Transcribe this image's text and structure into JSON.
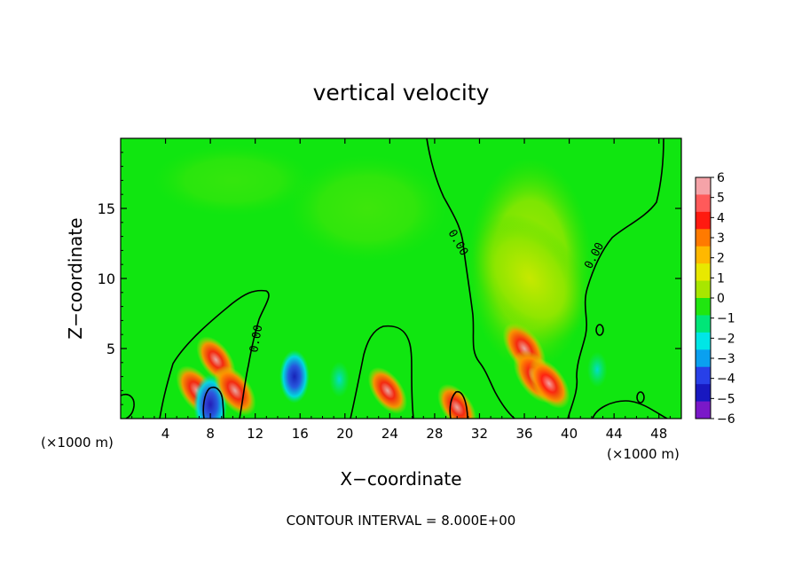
{
  "chart_data": {
    "type": "heatmap",
    "title": "vertical velocity",
    "xlabel": "X−coordinate",
    "ylabel": "Z−coordinate",
    "x_unit_left": "(×1000 m)",
    "x_unit_right": "(×1000 m)",
    "footer": "CONTOUR INTERVAL = 8.000E+00",
    "xlim": [
      0,
      50
    ],
    "ylim": [
      0,
      20
    ],
    "x_ticks": [
      4,
      8,
      12,
      16,
      20,
      24,
      28,
      32,
      36,
      40,
      44,
      48
    ],
    "y_ticks": [
      5,
      10,
      15
    ],
    "colorbar_levels": [
      6,
      5,
      4,
      3,
      2,
      1,
      0,
      -1,
      -2,
      -3,
      -4,
      -5,
      -6
    ],
    "colorbar_labels": [
      "6",
      "5",
      "4",
      "3",
      "2",
      "1",
      "0",
      "−1",
      "−2",
      "−3",
      "−4",
      "−5",
      "−6"
    ],
    "colorbar_colors": [
      "#f5a3a8",
      "#ff5a5a",
      "#ff1a10",
      "#ff7a00",
      "#ffb800",
      "#e8e800",
      "#a8e600",
      "#20e610",
      "#00e678",
      "#00e6e6",
      "#0aa0f0",
      "#2840e8",
      "#1818c0",
      "#7a18c8"
    ],
    "background_value": 0.4,
    "contour_labels": [
      "0.00",
      "0.00",
      "0.00"
    ],
    "features": [
      {
        "x": 6.8,
        "z": 2.0,
        "value": 4.5
      },
      {
        "x": 8.5,
        "z": 4.2,
        "value": 4.0
      },
      {
        "x": 8.0,
        "z": 1.0,
        "value": -5.0
      },
      {
        "x": 10.2,
        "z": 2.0,
        "value": 4.5
      },
      {
        "x": 15.5,
        "z": 3.0,
        "value": -4.0
      },
      {
        "x": 23.8,
        "z": 2.0,
        "value": 4.0
      },
      {
        "x": 30.0,
        "z": 0.8,
        "value": 4.0
      },
      {
        "x": 36.0,
        "z": 5.0,
        "value": 4.8
      },
      {
        "x": 37.0,
        "z": 3.0,
        "value": 5.0
      },
      {
        "x": 38.2,
        "z": 2.5,
        "value": 4.5
      },
      {
        "x": 36.5,
        "z": 10.0,
        "value": 1.0
      },
      {
        "x": 42.5,
        "z": 3.5,
        "value": -1.5
      },
      {
        "x": 19.5,
        "z": 2.8,
        "value": -1.5
      }
    ]
  }
}
